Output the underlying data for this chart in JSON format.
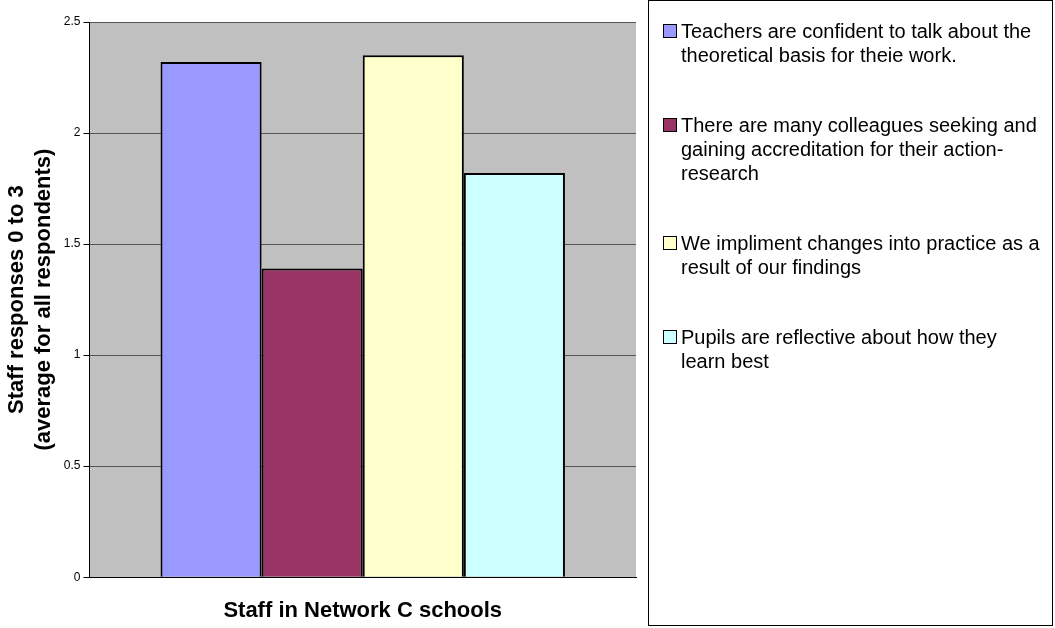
{
  "chart_data": {
    "type": "bar",
    "xlabel": "Staff in Network C schools",
    "ylabel": "Staff responses 0 to 3\n(average for all respondents)",
    "categories": [
      null
    ],
    "series": [
      {
        "name": "Teachers are confident to talk about the theoretical basis for theie work.",
        "color": "#9999ff",
        "values": [
          2.32
        ]
      },
      {
        "name": "There are many colleagues seeking and gaining accreditation for their action-research",
        "color": "#993366",
        "values": [
          1.39
        ]
      },
      {
        "name": "We impliment changes into practice as a result of our findings",
        "color": "#ffffcc",
        "values": [
          2.35
        ]
      },
      {
        "name": "Pupils are reflective about how they learn best",
        "color": "#ccffff",
        "values": [
          1.82
        ]
      }
    ],
    "ylim": [
      0,
      2.5
    ],
    "yticks": [
      0,
      0.5,
      1,
      1.5,
      2,
      2.5
    ],
    "grid": "y",
    "legend": "right"
  }
}
